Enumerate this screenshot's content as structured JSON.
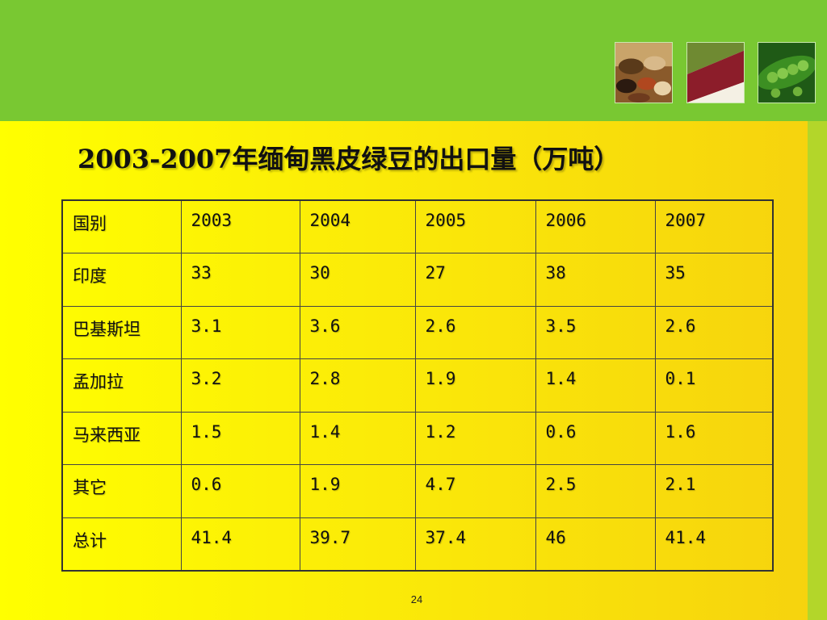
{
  "colors": {
    "header_band": "#79c832",
    "background": "#ffff00",
    "right_strip": "#b3d62a"
  },
  "images": [
    {
      "name": "beans-and-grains-photo"
    },
    {
      "name": "mung-and-red-beans-photo"
    },
    {
      "name": "green-peas-photo"
    }
  ],
  "title": "2003-2007年缅甸黑皮绿豆的出口量（万吨）",
  "table": {
    "header": [
      "国别",
      "2003",
      "2004",
      "2005",
      "2006",
      "2007"
    ],
    "rows": [
      [
        "印度",
        "33",
        "30",
        "27",
        "38",
        "35"
      ],
      [
        "巴基斯坦",
        "3.1",
        "3.6",
        "2.6",
        "3.5",
        "2.6"
      ],
      [
        "孟加拉",
        "3.2",
        "2.8",
        "1.9",
        "1.4",
        "0.1"
      ],
      [
        "马来西亚",
        "1.5",
        "1.4",
        "1.2",
        "0.6",
        "1.6"
      ],
      [
        "其它",
        "0.6",
        "1.9",
        "4.7",
        "2.5",
        "2.1"
      ],
      [
        "总计",
        "41.4",
        "39.7",
        "37.4",
        "46",
        "41.4"
      ]
    ]
  },
  "page_number": "24"
}
